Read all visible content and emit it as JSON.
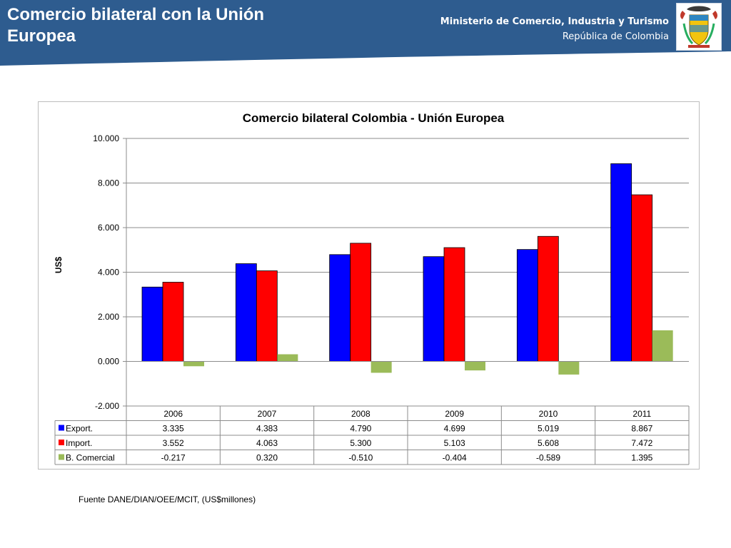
{
  "slide": {
    "title": "Comercio bilateral con la Unión Europea",
    "ministry_line1": "Ministerio de Comercio, Industria y Turismo",
    "ministry_line2": "República de Colombia",
    "source_note": "Fuente DANE/DIAN/OEE/MCIT, (US$millones)",
    "header_color": "#2e5c8f",
    "emblem_icon": "colombia-coat-of-arms-icon"
  },
  "chart_data": {
    "type": "bar",
    "title": "Comercio bilateral Colombia - Unión Europea",
    "ylabel": "US$",
    "xlabel": "",
    "categories": [
      "2006",
      "2007",
      "2008",
      "2009",
      "2010",
      "2011"
    ],
    "ylim": [
      -2000,
      10000
    ],
    "yticks": [
      -2000,
      0,
      2000,
      4000,
      6000,
      8000,
      10000
    ],
    "ytick_labels": [
      "-2.000",
      "0.000",
      "2.000",
      "4.000",
      "6.000",
      "8.000",
      "10.000"
    ],
    "grid": true,
    "legend": "data-table",
    "series": [
      {
        "name": "Export.",
        "color": "#0000ff",
        "values": [
          3335,
          4383,
          4790,
          4699,
          5019,
          8867
        ],
        "labels": [
          "3.335",
          "4.383",
          "4.790",
          "4.699",
          "5.019",
          "8.867"
        ]
      },
      {
        "name": "Import.",
        "color": "#ff0000",
        "values": [
          3552,
          4063,
          5300,
          5103,
          5608,
          7472
        ],
        "labels": [
          "3.552",
          "4.063",
          "5.300",
          "5.103",
          "5.608",
          "7.472"
        ]
      },
      {
        "name": "B. Comercial",
        "color": "#9bbb59",
        "values": [
          -217,
          320,
          -510,
          -404,
          -589,
          1395
        ],
        "labels": [
          "-0.217",
          "0.320",
          "-0.510",
          "-0.404",
          "-0.589",
          "1.395"
        ]
      }
    ]
  }
}
